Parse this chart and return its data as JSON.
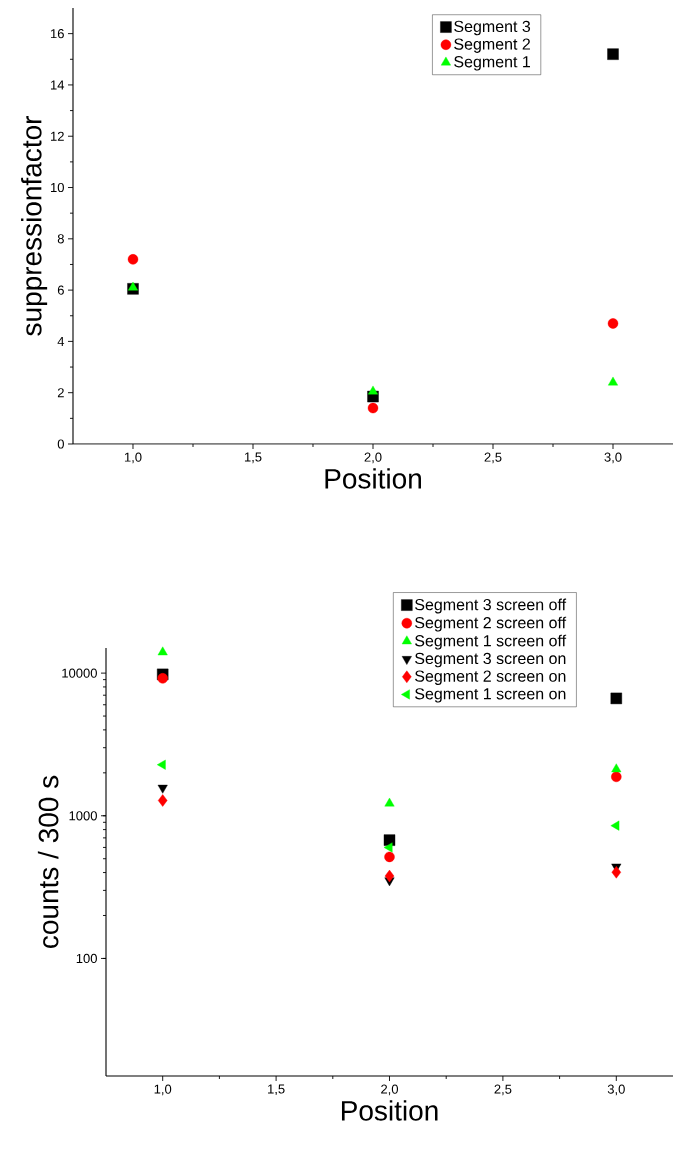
{
  "chart_data": [
    {
      "type": "scatter",
      "xlabel": "Position",
      "ylabel": "suppressionfactor",
      "xlim": [
        0.75,
        3.25
      ],
      "ylim": [
        0,
        17
      ],
      "xticks": [
        {
          "value": 1,
          "label": "1,0"
        },
        {
          "value": 1.5,
          "label": "1,5"
        },
        {
          "value": 2,
          "label": "2,0"
        },
        {
          "value": 2.5,
          "label": "2,5"
        },
        {
          "value": 3,
          "label": "3,0"
        }
      ],
      "yticks": [
        0,
        2,
        4,
        6,
        8,
        10,
        12,
        14,
        16
      ],
      "legend": "top right",
      "grid": false,
      "series": [
        {
          "name": "Segment 3",
          "color": "#000000",
          "marker": "square",
          "x": [
            1,
            2,
            3
          ],
          "values": [
            6.05,
            1.85,
            15.2
          ]
        },
        {
          "name": "Segment 2",
          "color": "#ff0000",
          "marker": "circle",
          "x": [
            1,
            2,
            3
          ],
          "values": [
            7.2,
            1.4,
            4.7
          ]
        },
        {
          "name": "Segment 1",
          "color": "#00ff00",
          "marker": "triangle",
          "x": [
            1,
            2,
            3
          ],
          "values": [
            6.1,
            2.05,
            2.4
          ]
        }
      ]
    },
    {
      "type": "scatter",
      "xlabel": "Position",
      "ylabel": "counts / 300 s",
      "log": "y",
      "xlim": [
        0.75,
        3.25
      ],
      "ylim": [
        15,
        15000
      ],
      "xticks": [
        {
          "value": 1,
          "label": "1,0"
        },
        {
          "value": 1.5,
          "label": "1,5"
        },
        {
          "value": 2,
          "label": "2,0"
        },
        {
          "value": 2.5,
          "label": "2,5"
        },
        {
          "value": 3,
          "label": "3,0"
        }
      ],
      "yticks": [
        100,
        1000,
        10000
      ],
      "legend": "top right",
      "grid": false,
      "series": [
        {
          "name": "Segment 3 screen off",
          "color": "#000000",
          "marker": "square",
          "x": [
            1,
            2,
            3
          ],
          "values": [
            9800,
            675,
            6650
          ]
        },
        {
          "name": "Segment 2 screen off",
          "color": "#ff0000",
          "marker": "circle",
          "x": [
            1,
            2,
            3
          ],
          "values": [
            9200,
            515,
            1875
          ]
        },
        {
          "name": "Segment 1 screen off",
          "color": "#00ff00",
          "marker": "triangle",
          "x": [
            1,
            2,
            3
          ],
          "values": [
            14000,
            1220,
            2120
          ]
        },
        {
          "name": "Segment 3 screen on",
          "color": "#000000",
          "marker": "triangle-down",
          "x": [
            1,
            2,
            3
          ],
          "values": [
            1570,
            352,
            440
          ]
        },
        {
          "name": "Segment 2 screen on",
          "color": "#ff0000",
          "marker": "diamond",
          "x": [
            1,
            2,
            3
          ],
          "values": [
            1280,
            378,
            402
          ]
        },
        {
          "name": "Segment 1 screen on",
          "color": "#00ff00",
          "marker": "triangle-left",
          "x": [
            1,
            2,
            3
          ],
          "values": [
            2280,
            600,
            853
          ]
        }
      ]
    }
  ]
}
